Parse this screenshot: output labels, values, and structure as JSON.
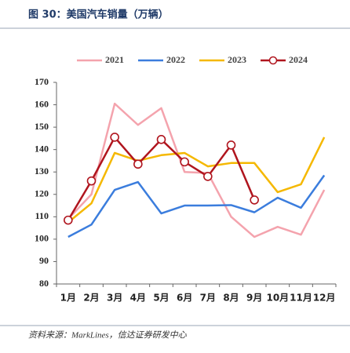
{
  "title": "图 30：美国汽车销量（万辆）",
  "source": "资料来源：MarkLines，信达证券研发中心",
  "chart_data": {
    "type": "line",
    "categories": [
      "1月",
      "2月",
      "3月",
      "4月",
      "5月",
      "6月",
      "7月",
      "8月",
      "9月",
      "10月",
      "11月",
      "12月"
    ],
    "series": [
      {
        "name": "2021",
        "color": "#f4a3ad",
        "values": [
          109,
          120,
          160.5,
          151,
          158.5,
          130,
          129.5,
          110,
          101,
          105.5,
          102,
          122
        ]
      },
      {
        "name": "2022",
        "color": "#3b7ddd",
        "values": [
          101,
          106.5,
          122,
          125.5,
          111.5,
          115,
          115,
          115.2,
          112,
          118.5,
          114,
          128.5
        ]
      },
      {
        "name": "2023",
        "color": "#f5b800",
        "values": [
          107.5,
          116,
          138.5,
          135,
          137.5,
          138.5,
          132.5,
          134,
          134,
          121,
          124.5,
          145.5
        ]
      },
      {
        "name": "2024",
        "color": "#b0151e",
        "marker": "circle",
        "values": [
          108.5,
          126,
          145.5,
          133.5,
          144.5,
          134.5,
          128,
          142,
          117.5,
          null,
          null,
          null
        ]
      }
    ],
    "ylim": [
      80,
      170
    ],
    "yticks": [
      80,
      90,
      100,
      110,
      120,
      130,
      140,
      150,
      160,
      170
    ],
    "legend": "top"
  }
}
